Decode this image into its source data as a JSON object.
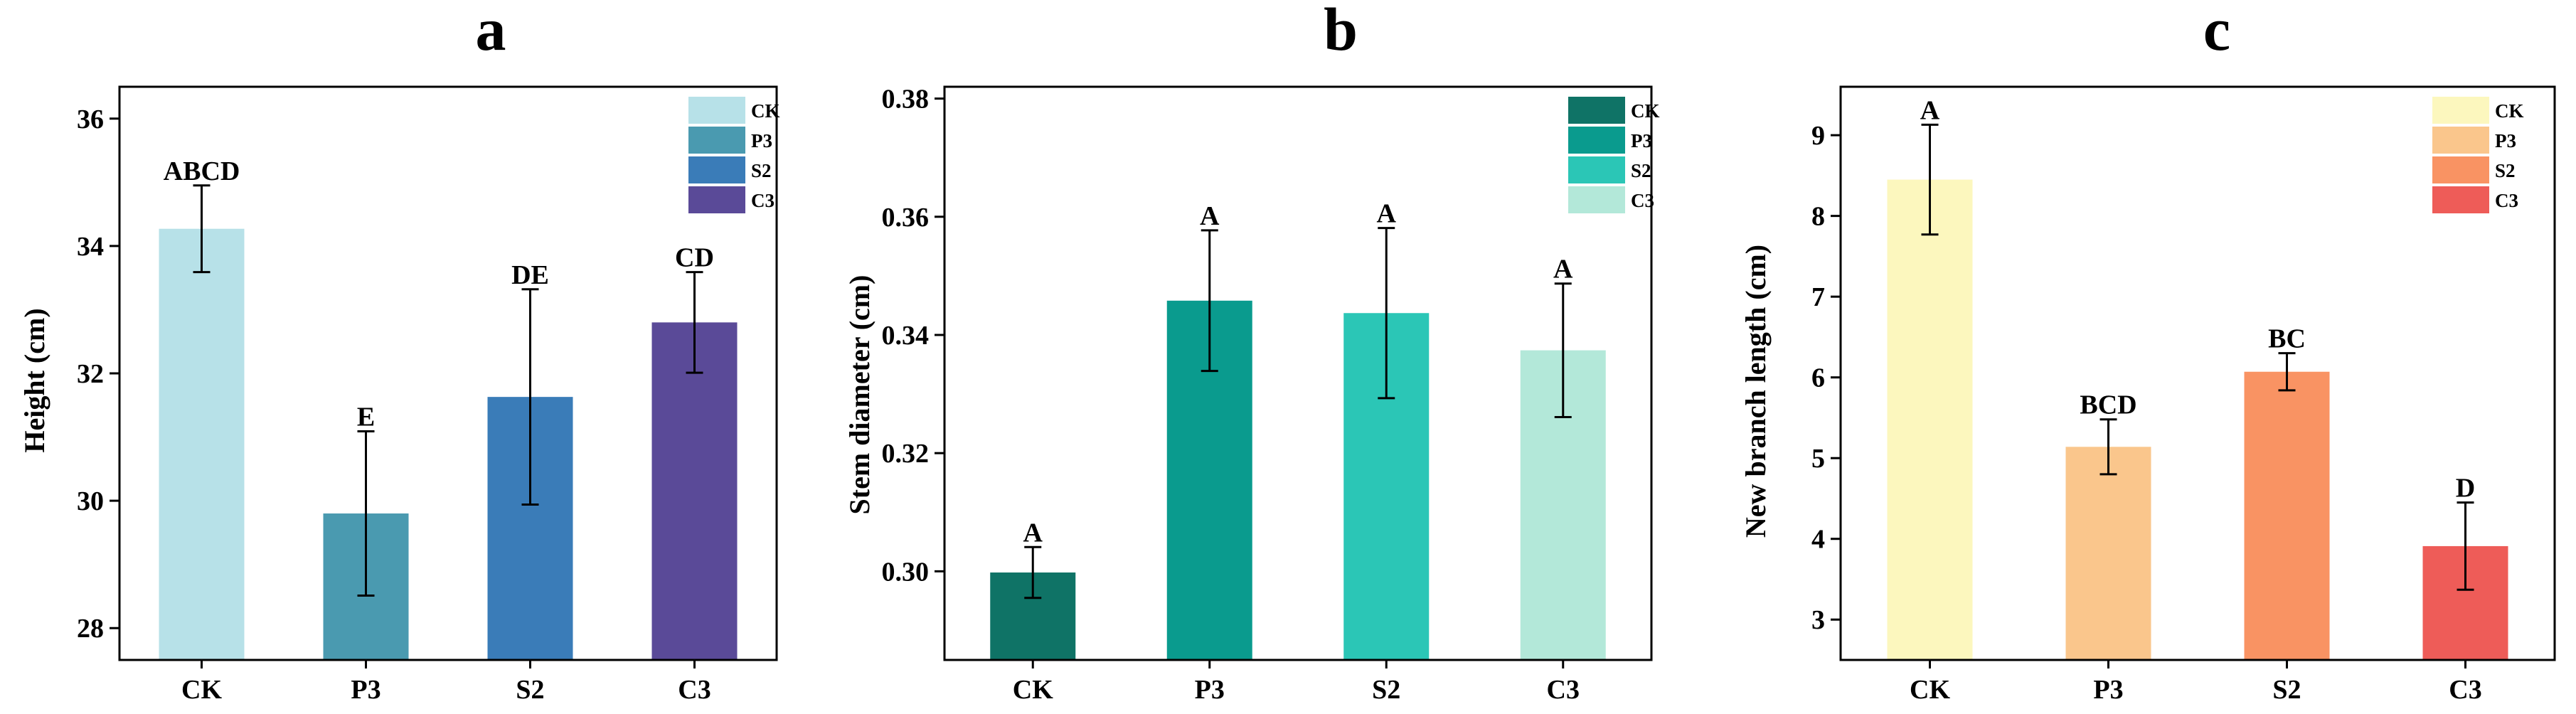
{
  "chart_data": [
    {
      "type": "bar",
      "panel_label": "a",
      "title": "a",
      "xlabel": "",
      "ylabel": "Height (cm)",
      "categories": [
        "CK",
        "P3",
        "S2",
        "C3"
      ],
      "values": [
        34.27,
        29.8,
        31.63,
        32.8
      ],
      "errors": [
        0.68,
        1.29,
        1.69,
        0.79
      ],
      "significance": [
        "ABCD",
        "E",
        "DE",
        "CD"
      ],
      "colors": [
        "#b7e1e8",
        "#4a9ab0",
        "#3a7cb8",
        "#5a4a98"
      ],
      "ylim": [
        27.5,
        36.5
      ],
      "yticks": [
        28,
        30,
        32,
        34,
        36
      ],
      "ytick_labels": [
        "28",
        "30",
        "32",
        "34",
        "36"
      ],
      "legend": [
        "CK",
        "P3",
        "S2",
        "C3"
      ],
      "legend_position": "top-right",
      "grid": false
    },
    {
      "type": "bar",
      "panel_label": "b",
      "title": "b",
      "xlabel": "",
      "ylabel": "Stem diameter (cm)",
      "categories": [
        "CK",
        "P3",
        "S2",
        "C3"
      ],
      "values": [
        0.2998,
        0.3458,
        0.3437,
        0.3374
      ],
      "errors": [
        0.0043,
        0.0119,
        0.0144,
        0.0113
      ],
      "significance": [
        "A",
        "A",
        "A",
        "A"
      ],
      "colors": [
        "#0f7366",
        "#0a9b8e",
        "#2bc6b6",
        "#b3e8d9"
      ],
      "ylim": [
        0.285,
        0.382
      ],
      "yticks": [
        0.3,
        0.32,
        0.34,
        0.36,
        0.38
      ],
      "ytick_labels": [
        "0.30",
        "0.32",
        "0.34",
        "0.36",
        "0.38"
      ],
      "legend": [
        "CK",
        "P3",
        "S2",
        "C3"
      ],
      "legend_position": "top-right",
      "grid": false
    },
    {
      "type": "bar",
      "panel_label": "c",
      "title": "c",
      "xlabel": "",
      "ylabel": "New branch length (cm)",
      "categories": [
        "CK",
        "P3",
        "S2",
        "C3"
      ],
      "values": [
        8.45,
        5.14,
        6.07,
        3.91
      ],
      "errors": [
        0.68,
        0.34,
        0.23,
        0.54
      ],
      "significance": [
        "A",
        "BCD",
        "BC",
        "D"
      ],
      "colors": [
        "#fcf7be",
        "#fac68c",
        "#f99363",
        "#ee5c58"
      ],
      "ylim": [
        2.5,
        9.6
      ],
      "yticks": [
        3,
        4,
        5,
        6,
        7,
        8,
        9
      ],
      "ytick_labels": [
        "3",
        "4",
        "5",
        "6",
        "7",
        "8",
        "9"
      ],
      "legend": [
        "CK",
        "P3",
        "S2",
        "C3"
      ],
      "legend_position": "top-right",
      "grid": false
    }
  ]
}
